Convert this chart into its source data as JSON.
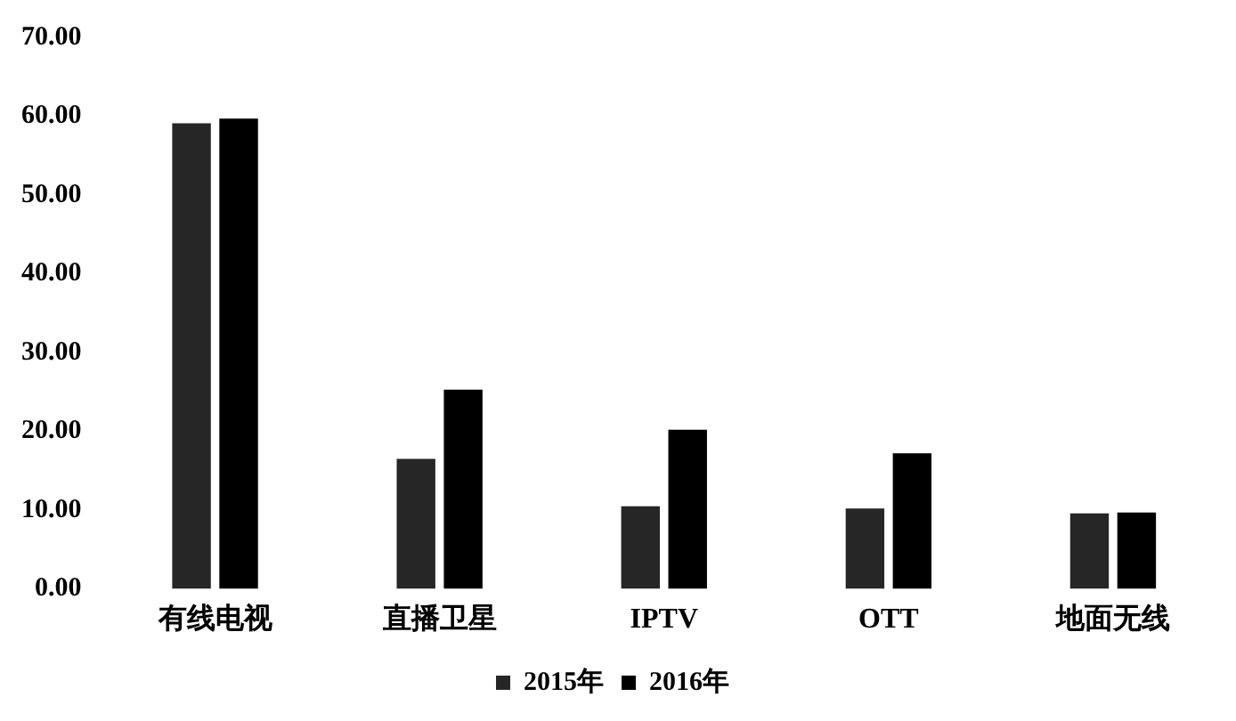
{
  "chart_data": {
    "type": "bar",
    "categories": [
      "有线电视",
      "直播卫星",
      "IPTV",
      "OTT",
      "地面无线"
    ],
    "series": [
      {
        "name": "2015年",
        "color": "#262626",
        "values": [
          59.1,
          16.5,
          10.5,
          10.2,
          9.6
        ]
      },
      {
        "name": "2016年",
        "color": "#000000",
        "values": [
          59.7,
          25.3,
          20.2,
          17.2,
          9.7
        ]
      }
    ],
    "ylim": [
      0,
      70
    ],
    "yticks": [
      {
        "value": 0,
        "label": "0.00"
      },
      {
        "value": 10,
        "label": "10.00"
      },
      {
        "value": 20,
        "label": "20.00"
      },
      {
        "value": 30,
        "label": "30.00"
      },
      {
        "value": 40,
        "label": "40.00"
      },
      {
        "value": 50,
        "label": "50.00"
      },
      {
        "value": 60,
        "label": "60.00"
      },
      {
        "value": 70,
        "label": "70.00"
      }
    ],
    "grid": false,
    "legend": "bottom"
  }
}
